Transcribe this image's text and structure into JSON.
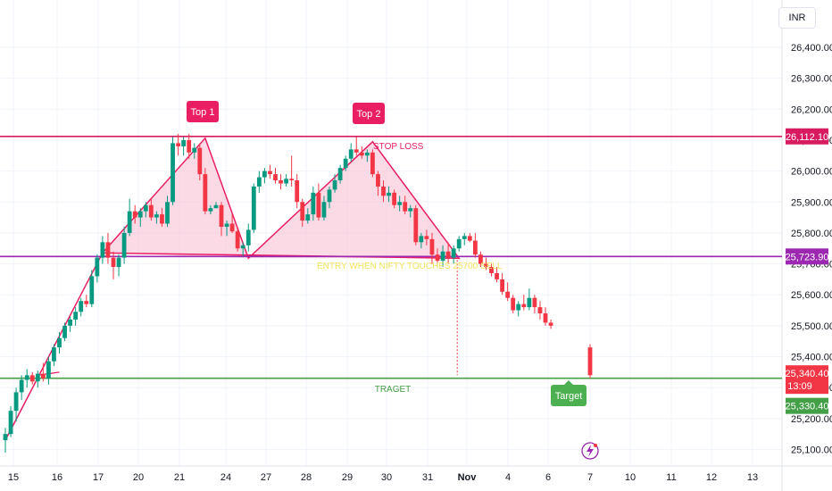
{
  "currency_label": "INR",
  "chart_data": {
    "type": "candlestick",
    "currency": "INR",
    "x_ticks": [
      "15",
      "16",
      "17",
      "20",
      "21",
      "24",
      "27",
      "28",
      "29",
      "30",
      "31",
      "Nov",
      "4",
      "6",
      "7",
      "10",
      "11",
      "12",
      "13"
    ],
    "y_ticks": [
      "25,100.00",
      "25,200.00",
      "25,300.00",
      "25,400.00",
      "25,500.00",
      "25,600.00",
      "25,700.00",
      "25,800.00",
      "25,900.00",
      "26,000.00",
      "26,100.00",
      "26,200.00",
      "26,300.00",
      "26,400.00"
    ],
    "ylim": [
      25090,
      26470
    ],
    "candles": [
      {
        "date": "Oct 14",
        "o": 25130,
        "h": 25170,
        "l": 25090,
        "c": 25150
      },
      {
        "date": "Oct 14",
        "o": 25150,
        "h": 25240,
        "l": 25140,
        "c": 25225
      },
      {
        "date": "Oct 14",
        "o": 25225,
        "h": 25300,
        "l": 25190,
        "c": 25285
      },
      {
        "date": "Oct 14",
        "o": 25285,
        "h": 25340,
        "l": 25260,
        "c": 25325
      },
      {
        "date": "Oct 15",
        "o": 25325,
        "h": 25360,
        "l": 25300,
        "c": 25340
      },
      {
        "date": "Oct 15",
        "o": 25340,
        "h": 25350,
        "l": 25310,
        "c": 25320
      },
      {
        "date": "Oct 15",
        "o": 25320,
        "h": 25355,
        "l": 25300,
        "c": 25345
      },
      {
        "date": "Oct 15",
        "o": 25345,
        "h": 25380,
        "l": 25320,
        "c": 25330
      },
      {
        "date": "Oct 16",
        "o": 25330,
        "h": 25400,
        "l": 25310,
        "c": 25385
      },
      {
        "date": "Oct 16",
        "o": 25385,
        "h": 25440,
        "l": 25370,
        "c": 25430
      },
      {
        "date": "Oct 16",
        "o": 25430,
        "h": 25480,
        "l": 25410,
        "c": 25460
      },
      {
        "date": "Oct 16",
        "o": 25460,
        "h": 25510,
        "l": 25450,
        "c": 25500
      },
      {
        "date": "Oct 16",
        "o": 25500,
        "h": 25530,
        "l": 25480,
        "c": 25520
      },
      {
        "date": "Oct 16",
        "o": 25520,
        "h": 25560,
        "l": 25500,
        "c": 25545
      },
      {
        "date": "Oct 17",
        "o": 25545,
        "h": 25590,
        "l": 25530,
        "c": 25580
      },
      {
        "date": "Oct 17",
        "o": 25580,
        "h": 25600,
        "l": 25560,
        "c": 25570
      },
      {
        "date": "Oct 17",
        "o": 25570,
        "h": 25680,
        "l": 25560,
        "c": 25660
      },
      {
        "date": "Oct 17",
        "o": 25660,
        "h": 25730,
        "l": 25640,
        "c": 25720
      },
      {
        "date": "Oct 17",
        "o": 25720,
        "h": 25790,
        "l": 25700,
        "c": 25770
      },
      {
        "date": "Oct 17",
        "o": 25770,
        "h": 25800,
        "l": 25700,
        "c": 25720
      },
      {
        "date": "Oct 17",
        "o": 25720,
        "h": 25740,
        "l": 25650,
        "c": 25690
      },
      {
        "date": "Oct 20",
        "o": 25690,
        "h": 25730,
        "l": 25660,
        "c": 25720
      },
      {
        "date": "Oct 20",
        "o": 25720,
        "h": 25820,
        "l": 25700,
        "c": 25800
      },
      {
        "date": "Oct 20",
        "o": 25800,
        "h": 25910,
        "l": 25790,
        "c": 25870
      },
      {
        "date": "Oct 20",
        "o": 25870,
        "h": 25890,
        "l": 25830,
        "c": 25850
      },
      {
        "date": "Oct 20",
        "o": 25850,
        "h": 25880,
        "l": 25820,
        "c": 25870
      },
      {
        "date": "Oct 20",
        "o": 25870,
        "h": 25900,
        "l": 25850,
        "c": 25890
      },
      {
        "date": "Oct 20",
        "o": 25890,
        "h": 25910,
        "l": 25840,
        "c": 25850
      },
      {
        "date": "Oct 20",
        "o": 25850,
        "h": 25870,
        "l": 25830,
        "c": 25860
      },
      {
        "date": "Oct 20",
        "o": 25860,
        "h": 25880,
        "l": 25820,
        "c": 25830
      },
      {
        "date": "Oct 21",
        "o": 25830,
        "h": 25920,
        "l": 25820,
        "c": 25900
      },
      {
        "date": "Oct 21",
        "o": 25900,
        "h": 26110,
        "l": 25890,
        "c": 26090
      },
      {
        "date": "Oct 21",
        "o": 26090,
        "h": 26120,
        "l": 26050,
        "c": 26080
      },
      {
        "date": "Oct 21",
        "o": 26080,
        "h": 26110,
        "l": 26050,
        "c": 26100
      },
      {
        "date": "Oct 23",
        "o": 26100,
        "h": 26120,
        "l": 26040,
        "c": 26060
      },
      {
        "date": "Oct 23",
        "o": 26060,
        "h": 26090,
        "l": 26040,
        "c": 26075
      },
      {
        "date": "Oct 23",
        "o": 26075,
        "h": 26090,
        "l": 25970,
        "c": 25990
      },
      {
        "date": "Oct 23",
        "o": 25990,
        "h": 26010,
        "l": 25860,
        "c": 25870
      },
      {
        "date": "Oct 23",
        "o": 25870,
        "h": 25890,
        "l": 25860,
        "c": 25880
      },
      {
        "date": "Oct 23",
        "o": 25880,
        "h": 25900,
        "l": 25880,
        "c": 25890
      },
      {
        "date": "Oct 23",
        "o": 25890,
        "h": 25900,
        "l": 25790,
        "c": 25820
      },
      {
        "date": "Oct 24",
        "o": 25820,
        "h": 25840,
        "l": 25790,
        "c": 25830
      },
      {
        "date": "Oct 24",
        "o": 25830,
        "h": 25860,
        "l": 25800,
        "c": 25805
      },
      {
        "date": "Oct 24",
        "o": 25805,
        "h": 25820,
        "l": 25740,
        "c": 25750
      },
      {
        "date": "Oct 24",
        "o": 25750,
        "h": 25770,
        "l": 25725,
        "c": 25760
      },
      {
        "date": "Oct 27",
        "o": 25760,
        "h": 25830,
        "l": 25740,
        "c": 25810
      },
      {
        "date": "Oct 27",
        "o": 25810,
        "h": 25960,
        "l": 25800,
        "c": 25950
      },
      {
        "date": "Oct 27",
        "o": 25950,
        "h": 26000,
        "l": 25930,
        "c": 25980
      },
      {
        "date": "Oct 27",
        "o": 25980,
        "h": 26010,
        "l": 25960,
        "c": 26000
      },
      {
        "date": "Oct 27",
        "o": 26000,
        "h": 26020,
        "l": 25975,
        "c": 25990
      },
      {
        "date": "Oct 27",
        "o": 25990,
        "h": 26010,
        "l": 25960,
        "c": 25970
      },
      {
        "date": "Oct 27",
        "o": 25970,
        "h": 25990,
        "l": 25940,
        "c": 25960
      },
      {
        "date": "Oct 27",
        "o": 25960,
        "h": 25990,
        "l": 25950,
        "c": 25975
      },
      {
        "date": "Oct 28",
        "o": 25975,
        "h": 26050,
        "l": 25950,
        "c": 25970
      },
      {
        "date": "Oct 28",
        "o": 25970,
        "h": 25990,
        "l": 25880,
        "c": 25900
      },
      {
        "date": "Oct 28",
        "o": 25900,
        "h": 25910,
        "l": 25820,
        "c": 25840
      },
      {
        "date": "Oct 28",
        "o": 25840,
        "h": 25880,
        "l": 25830,
        "c": 25860
      },
      {
        "date": "Oct 28",
        "o": 25860,
        "h": 25950,
        "l": 25840,
        "c": 25930
      },
      {
        "date": "Oct 28",
        "o": 25930,
        "h": 25960,
        "l": 25840,
        "c": 25850
      },
      {
        "date": "Oct 28",
        "o": 25850,
        "h": 25920,
        "l": 25840,
        "c": 25900
      },
      {
        "date": "Oct 28",
        "o": 25900,
        "h": 25950,
        "l": 25880,
        "c": 25940
      },
      {
        "date": "Oct 29",
        "o": 25940,
        "h": 25990,
        "l": 25930,
        "c": 25970
      },
      {
        "date": "Oct 29",
        "o": 25970,
        "h": 26020,
        "l": 25960,
        "c": 26010
      },
      {
        "date": "Oct 29",
        "o": 26010,
        "h": 26050,
        "l": 26000,
        "c": 26040
      },
      {
        "date": "Oct 29",
        "o": 26040,
        "h": 26090,
        "l": 26030,
        "c": 26070
      },
      {
        "date": "Oct 29",
        "o": 26070,
        "h": 26110,
        "l": 26050,
        "c": 26060
      },
      {
        "date": "Oct 29",
        "o": 26060,
        "h": 26080,
        "l": 26040,
        "c": 26050
      },
      {
        "date": "Oct 29",
        "o": 26050,
        "h": 26070,
        "l": 26030,
        "c": 26060
      },
      {
        "date": "Oct 30",
        "o": 26060,
        "h": 26070,
        "l": 25980,
        "c": 25990
      },
      {
        "date": "Oct 30",
        "o": 25990,
        "h": 26000,
        "l": 25920,
        "c": 25950
      },
      {
        "date": "Oct 30",
        "o": 25950,
        "h": 25970,
        "l": 25900,
        "c": 25920
      },
      {
        "date": "Oct 30",
        "o": 25920,
        "h": 25950,
        "l": 25900,
        "c": 25930
      },
      {
        "date": "Oct 30",
        "o": 25930,
        "h": 25940,
        "l": 25880,
        "c": 25890
      },
      {
        "date": "Oct 30",
        "o": 25890,
        "h": 25920,
        "l": 25870,
        "c": 25900
      },
      {
        "date": "Oct 30",
        "o": 25900,
        "h": 25920,
        "l": 25860,
        "c": 25870
      },
      {
        "date": "Oct 31",
        "o": 25870,
        "h": 25890,
        "l": 25850,
        "c": 25880
      },
      {
        "date": "Oct 31",
        "o": 25880,
        "h": 25890,
        "l": 25760,
        "c": 25770
      },
      {
        "date": "Oct 31",
        "o": 25770,
        "h": 25800,
        "l": 25750,
        "c": 25790
      },
      {
        "date": "Oct 31",
        "o": 25790,
        "h": 25810,
        "l": 25760,
        "c": 25780
      },
      {
        "date": "Oct 31",
        "o": 25780,
        "h": 25800,
        "l": 25700,
        "c": 25730
      },
      {
        "date": "Oct 31",
        "o": 25730,
        "h": 25750,
        "l": 25690,
        "c": 25710
      },
      {
        "date": "Nov 3",
        "o": 25710,
        "h": 25760,
        "l": 25690,
        "c": 25740
      },
      {
        "date": "Nov 3",
        "o": 25740,
        "h": 25770,
        "l": 25700,
        "c": 25720
      },
      {
        "date": "Nov 3",
        "o": 25720,
        "h": 25760,
        "l": 25700,
        "c": 25750
      },
      {
        "date": "Nov 3",
        "o": 25750,
        "h": 25790,
        "l": 25740,
        "c": 25780
      },
      {
        "date": "Nov 3",
        "o": 25780,
        "h": 25800,
        "l": 25760,
        "c": 25790
      },
      {
        "date": "Nov 3",
        "o": 25790,
        "h": 25800,
        "l": 25770,
        "c": 25775
      },
      {
        "date": "Nov 4",
        "o": 25775,
        "h": 25800,
        "l": 25720,
        "c": 25730
      },
      {
        "date": "Nov 4",
        "o": 25730,
        "h": 25740,
        "l": 25690,
        "c": 25700
      },
      {
        "date": "Nov 4",
        "o": 25700,
        "h": 25720,
        "l": 25680,
        "c": 25690
      },
      {
        "date": "Nov 4",
        "o": 25690,
        "h": 25700,
        "l": 25660,
        "c": 25670
      },
      {
        "date": "Nov 4",
        "o": 25670,
        "h": 25690,
        "l": 25640,
        "c": 25650
      },
      {
        "date": "Nov 4",
        "o": 25650,
        "h": 25670,
        "l": 25600,
        "c": 25610
      },
      {
        "date": "Nov 6",
        "o": 25610,
        "h": 25640,
        "l": 25580,
        "c": 25590
      },
      {
        "date": "Nov 6",
        "o": 25590,
        "h": 25600,
        "l": 25540,
        "c": 25550
      },
      {
        "date": "Nov 6",
        "o": 25550,
        "h": 25580,
        "l": 25530,
        "c": 25570
      },
      {
        "date": "Nov 6",
        "o": 25570,
        "h": 25600,
        "l": 25550,
        "c": 25560
      },
      {
        "date": "Nov 6",
        "o": 25560,
        "h": 25620,
        "l": 25550,
        "c": 25590
      },
      {
        "date": "Nov 6",
        "o": 25590,
        "h": 25600,
        "l": 25540,
        "c": 25560
      },
      {
        "date": "Nov 6",
        "o": 25560,
        "h": 25580,
        "l": 25520,
        "c": 25540
      },
      {
        "date": "Nov 6",
        "o": 25540,
        "h": 25560,
        "l": 25500,
        "c": 25510
      },
      {
        "date": "Nov 7",
        "o": 25510,
        "h": 25520,
        "l": 25490,
        "c": 25500
      },
      {
        "date": "Nov 7",
        "o": 25430,
        "h": 25440,
        "l": 25330,
        "c": 25340
      }
    ],
    "levels": [
      {
        "name": "STOP LOSS",
        "value": 26112.1,
        "label": "26,112.10",
        "color": "#d81b60"
      },
      {
        "name": "ENTRY",
        "value": 25723.9,
        "label": "25,723.90",
        "color": "#9c27b0"
      },
      {
        "name": "TRAGET",
        "value": 25330.4,
        "label": "25,330.40",
        "color": "#43a047"
      }
    ],
    "last_price": {
      "value": 25340.4,
      "label": "25,340.40",
      "countdown": "13:09",
      "color": "#f23645"
    },
    "annotations": {
      "top1": "Top 1",
      "top2": "Top 2",
      "stop_loss": "STOP LOSS",
      "entry": "ENTRY WHEN NIFTY TOUCHES  25700 SELL",
      "target_line": "TRAGET",
      "target_badge": "Target"
    },
    "colors": {
      "up": "#089981",
      "down": "#f23645",
      "pattern": "#e91e63",
      "pattern_fill": "#f8bbd0"
    },
    "grid": true
  }
}
